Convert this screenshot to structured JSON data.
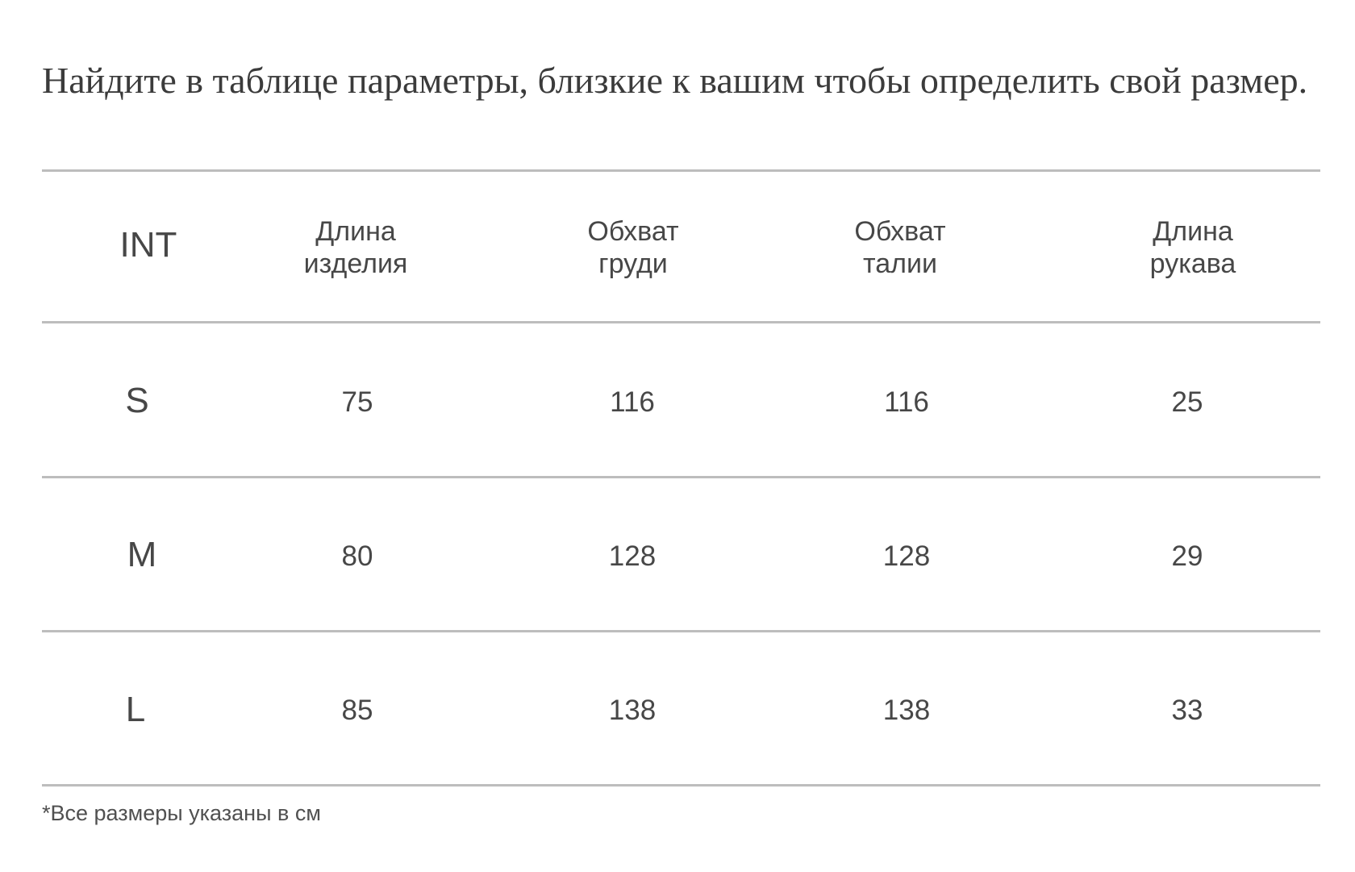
{
  "title": "Найдите в таблице параметры, близкие к вашим чтобы определить свой размер.",
  "table": {
    "headers": [
      {
        "lines": [
          "INT"
        ]
      },
      {
        "lines": [
          "Длина",
          "изделия"
        ]
      },
      {
        "lines": [
          "Обхват",
          "груди"
        ]
      },
      {
        "lines": [
          "Обхват",
          "талии"
        ]
      },
      {
        "lines": [
          "Длина",
          "рукава"
        ]
      }
    ],
    "rows": [
      {
        "size": "S",
        "values": [
          "75",
          "116",
          "116",
          "25"
        ]
      },
      {
        "size": "M",
        "values": [
          "80",
          "128",
          "128",
          "29"
        ]
      },
      {
        "size": "L",
        "values": [
          "85",
          "138",
          "138",
          "33"
        ]
      }
    ]
  },
  "footnote": "*Все размеры указаны в см",
  "colors": {
    "rule": "#bdbdbd",
    "text": "#474747"
  }
}
